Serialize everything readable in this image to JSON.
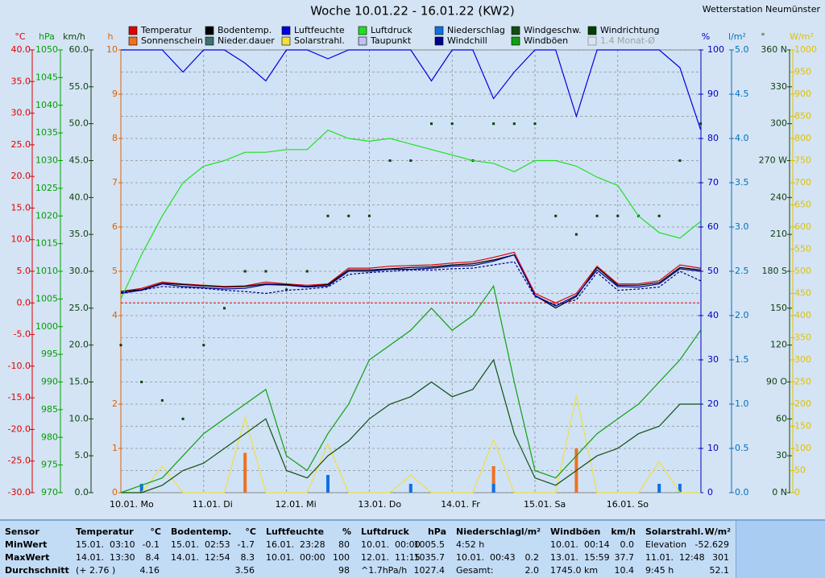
{
  "chart_data": {
    "type": "line",
    "title": "Woche 10.01.22 - 16.01.22 (KW2)",
    "station": "Wetterstation Neumünster",
    "legend_extra": "1.4 Monat-Ø",
    "xticks": [
      "10.01. Mo",
      "11.01. Di",
      "12.01. Mi",
      "13.01. Do",
      "14.01. Fr",
      "15.01. Sa",
      "16.01. So"
    ],
    "grid": true,
    "grid_axis": "W/m²",
    "axes": [
      {
        "label": "°C",
        "side": "left",
        "color": "#e00000",
        "lim": [
          -30,
          40
        ],
        "ticks": [
          {
            "value": -30,
            "label": "-30.0"
          },
          {
            "value": -25,
            "label": "-25.0"
          },
          {
            "value": -20,
            "label": "-20.0"
          },
          {
            "value": -15,
            "label": "-15.0"
          },
          {
            "value": -10,
            "label": "-10.0"
          },
          {
            "value": -5,
            "label": "-5.0"
          },
          {
            "value": 0,
            "label": "0.0"
          },
          {
            "value": 5,
            "label": "5.0"
          },
          {
            "value": 10,
            "label": "10.0"
          },
          {
            "value": 15,
            "label": "15.0"
          },
          {
            "value": 20,
            "label": "20.0"
          },
          {
            "value": 25,
            "label": "25.0"
          },
          {
            "value": 30,
            "label": "30.0"
          },
          {
            "value": 35,
            "label": "35.0"
          },
          {
            "value": 40,
            "label": "40.0"
          }
        ]
      },
      {
        "label": "hPa",
        "side": "left",
        "color": "#00a000",
        "lim": [
          970,
          1050
        ],
        "ticks": [
          970,
          975,
          980,
          985,
          990,
          995,
          1000,
          1005,
          1010,
          1015,
          1020,
          1025,
          1030,
          1035,
          1040,
          1045,
          1050
        ]
      },
      {
        "label": "km/h",
        "side": "left",
        "color": "#104010",
        "lim": [
          0,
          60
        ],
        "ticks": [
          {
            "value": 0,
            "label": "0.0"
          },
          {
            "value": 5,
            "label": "5.0"
          },
          {
            "value": 10,
            "label": "10.0"
          },
          {
            "value": 15,
            "label": "15.0"
          },
          {
            "value": 20,
            "label": "20.0"
          },
          {
            "value": 25,
            "label": "25.0"
          },
          {
            "value": 30,
            "label": "30.0"
          },
          {
            "value": 35,
            "label": "35.0"
          },
          {
            "value": 40,
            "label": "40.0"
          },
          {
            "value": 45,
            "label": "45.0"
          },
          {
            "value": 50,
            "label": "50.0"
          },
          {
            "value": 55,
            "label": "55.0"
          },
          {
            "value": 60,
            "label": "60.0"
          }
        ]
      },
      {
        "label": "h",
        "side": "left",
        "color": "#e06000",
        "lim": [
          0,
          10
        ],
        "ticks": [
          0,
          1,
          2,
          4,
          5,
          6,
          7,
          8,
          9,
          10
        ]
      },
      {
        "label": "%",
        "side": "right",
        "color": "#0000c0",
        "lim": [
          0,
          100
        ],
        "ticks": [
          0,
          10,
          20,
          30,
          40,
          50,
          60,
          70,
          80,
          90,
          100
        ]
      },
      {
        "label": "l/m²",
        "side": "right",
        "color": "#0070c0",
        "lim": [
          0,
          5
        ],
        "ticks": [
          {
            "value": 0,
            "label": "0.0"
          },
          0.5,
          {
            "value": 1,
            "label": "1.0"
          },
          1.5,
          {
            "value": 2,
            "label": "2.0"
          },
          2.5,
          {
            "value": 3,
            "label": "3.0"
          },
          3.5,
          {
            "value": 4,
            "label": "4.0"
          },
          4.5,
          {
            "value": 5,
            "label": "5.0"
          }
        ]
      },
      {
        "label": "°",
        "side": "right",
        "color": "#104010",
        "lim": [
          0,
          360
        ],
        "ticks": [
          {
            "value": 0,
            "label": "0 N"
          },
          30,
          60,
          {
            "value": 90,
            "label": "90 O"
          },
          120,
          150,
          {
            "value": 180,
            "label": "180 S"
          },
          210,
          240,
          {
            "value": 270,
            "label": "270 W"
          },
          300,
          330,
          {
            "value": 360,
            "label": "360 N"
          }
        ]
      },
      {
        "label": "W/m²",
        "side": "right",
        "color": "#e0c000",
        "lim": [
          0,
          1000
        ],
        "ticks": [
          0,
          50,
          100,
          150,
          200,
          250,
          300,
          350,
          400,
          450,
          500,
          550,
          600,
          650,
          700,
          750,
          800,
          850,
          900,
          950,
          1000
        ]
      }
    ],
    "series": [
      {
        "name": "Temperatur",
        "color": "#e00000",
        "axis": "°C",
        "kind": "line",
        "values": [
          1.8,
          2.3,
          3.3,
          3.0,
          2.8,
          2.6,
          2.7,
          3.3,
          3.0,
          2.8,
          3.0,
          5.5,
          5.5,
          5.8,
          5.9,
          6.0,
          6.3,
          6.5,
          7.2,
          8.0,
          1.5,
          0.0,
          1.5,
          5.8,
          3.0,
          3.0,
          3.5,
          6.0,
          5.5
        ]
      },
      {
        "name": "Sonnenschein",
        "color": "#f07020",
        "axis": "h",
        "kind": "bar",
        "values": [
          0,
          0,
          0,
          0,
          0,
          0,
          0.9,
          0,
          0,
          0,
          0.3,
          0,
          0,
          0,
          0,
          0,
          0,
          0,
          0.6,
          0,
          0,
          0,
          1.0,
          0,
          0,
          0,
          0,
          0,
          0
        ]
      },
      {
        "name": "Bodentemp.",
        "color": "#000000",
        "axis": "°C",
        "kind": "line",
        "values": [
          1.8,
          2.1,
          3.1,
          2.9,
          2.7,
          2.5,
          2.6,
          3.0,
          2.9,
          2.6,
          2.9,
          5.2,
          5.2,
          5.4,
          5.6,
          5.7,
          6.0,
          6.2,
          6.8,
          7.6,
          1.2,
          -0.8,
          1.0,
          5.6,
          2.8,
          2.8,
          3.2,
          5.6,
          5.2
        ]
      },
      {
        "name": "Nieder.dauer",
        "color": "#407070"
      },
      {
        "name": "Luftfeuchte",
        "color": "#0000e0",
        "axis": "%",
        "kind": "line",
        "values": [
          100,
          100,
          100,
          95,
          100,
          100,
          97,
          93,
          100,
          100,
          98,
          100,
          100,
          100,
          100,
          93,
          100,
          100,
          89,
          95,
          100,
          100,
          85,
          100,
          100,
          100,
          100,
          96,
          82
        ]
      },
      {
        "name": "Solarstrahl.",
        "color": "#f0e040",
        "axis": "W/m²",
        "kind": "line",
        "values": [
          0,
          0,
          60,
          0,
          0,
          0,
          170,
          0,
          0,
          0,
          110,
          0,
          0,
          0,
          40,
          0,
          0,
          0,
          120,
          0,
          0,
          0,
          220,
          0,
          0,
          0,
          70,
          0,
          0
        ]
      },
      {
        "name": "Luftdruck",
        "color": "#20e020",
        "axis": "hPa",
        "kind": "line",
        "values": [
          1005,
          1013,
          1020,
          1026,
          1029,
          1030,
          1031.5,
          1031.5,
          1032,
          1032,
          1035.5,
          1034,
          1033.5,
          1034,
          1033,
          1032,
          1031,
          1030,
          1029.5,
          1028,
          1030,
          1030,
          1029,
          1027,
          1025.5,
          1020,
          1017,
          1016,
          1019
        ]
      },
      {
        "name": "Taupunkt",
        "color": "#c0c0f0",
        "line_color": "#000080",
        "dash": true,
        "axis": "°C",
        "kind": "line",
        "values": [
          1.6,
          2.0,
          2.6,
          2.4,
          2.3,
          2.0,
          1.8,
          1.5,
          2.0,
          2.2,
          2.5,
          4.5,
          4.8,
          5.0,
          5.2,
          5.2,
          5.4,
          5.5,
          6.0,
          6.5,
          1.0,
          -0.3,
          0.5,
          4.8,
          2.0,
          2.2,
          2.5,
          5.0,
          3.5
        ]
      },
      {
        "name": "Niederschlag",
        "color": "#1070e0",
        "axis": "l/m²",
        "kind": "bar",
        "values": [
          0,
          0.1,
          0,
          0,
          0,
          0,
          0,
          0,
          0,
          0,
          0.2,
          0,
          0,
          0,
          0.1,
          0,
          0,
          0,
          0.1,
          0,
          0,
          0,
          0,
          0,
          0,
          0,
          0.1,
          0.1,
          0
        ]
      },
      {
        "name": "Windchill",
        "color": "#000090",
        "axis": "°C",
        "kind": "line",
        "values": [
          1.5,
          2.0,
          3.0,
          2.6,
          2.4,
          2.2,
          2.3,
          2.9,
          2.8,
          2.5,
          2.7,
          5.0,
          5.0,
          5.3,
          5.3,
          5.5,
          5.8,
          5.9,
          6.6,
          7.6,
          1.2,
          -0.5,
          1.2,
          5.2,
          2.6,
          2.5,
          3.0,
          5.4,
          5.0
        ]
      },
      {
        "name": "Windgeschw.",
        "color": "#105010",
        "axis": "km/h",
        "kind": "line",
        "values": [
          0,
          0,
          1,
          3,
          4,
          6,
          8,
          10,
          3,
          2,
          5,
          7,
          10,
          12,
          13,
          15,
          13,
          14,
          18,
          8,
          2,
          1,
          3,
          5,
          6,
          8,
          9,
          12,
          12
        ]
      },
      {
        "name": "Windböen",
        "color": "#10a010",
        "axis": "km/h",
        "kind": "line",
        "values": [
          0,
          1,
          2,
          5,
          8,
          10,
          12,
          14,
          5,
          3,
          8,
          12,
          18,
          20,
          22,
          25,
          22,
          24,
          28,
          15,
          3,
          2,
          5,
          8,
          10,
          12,
          15,
          18,
          22
        ]
      },
      {
        "name": "Windrichtung",
        "color": "#004000",
        "axis": "°",
        "kind": "dots",
        "values": [
          120,
          90,
          75,
          60,
          120,
          150,
          180,
          180,
          165,
          180,
          225,
          225,
          225,
          270,
          270,
          300,
          300,
          270,
          300,
          300,
          300,
          225,
          210,
          225,
          225,
          225,
          225,
          270,
          300
        ]
      }
    ]
  },
  "table": {
    "columns": [
      {
        "title": "Sensor"
      },
      {
        "title": "Temperatur",
        "unit": "°C"
      },
      {
        "title": "Bodentemp.",
        "unit": "°C"
      },
      {
        "title": "Luftfeuchte",
        "unit": "%"
      },
      {
        "title": "Luftdruck",
        "unit": "hPa"
      },
      {
        "title": "Niederschlag",
        "unit": "l/m²"
      },
      {
        "title": "Windböen",
        "unit": "km/h"
      },
      {
        "title": "Solarstrahl.",
        "unit": "W/m²"
      }
    ],
    "rows": [
      {
        "label": "MinWert",
        "cells": [
          {
            "note": "15.01.  03:10",
            "value": "-0.1"
          },
          {
            "note": "15.01.  02:53",
            "value": "-1.7"
          },
          {
            "note": "16.01.  23:28",
            "value": "80"
          },
          {
            "note": "10.01.  00:00",
            "value": "1005.5"
          },
          {
            "note": "4:52 h"
          },
          {
            "note": "10.01.  00:14",
            "value": "0.0"
          },
          {
            "note": "Elevation",
            "value": "-52.629"
          }
        ]
      },
      {
        "label": "MaxWert",
        "cells": [
          {
            "note": "14.01.  13:30",
            "value": "8.4"
          },
          {
            "note": "14.01.  12:54",
            "value": "8.3"
          },
          {
            "note": "10.01.  00:00",
            "value": "100"
          },
          {
            "note": "12.01.  11:15",
            "value": "1035.7"
          },
          {
            "note": "10.01.  00:43",
            "value": "0.2"
          },
          {
            "note": "13.01.  15:59",
            "value": "37.7"
          },
          {
            "note": "11.01.  12:48",
            "value": "301"
          }
        ]
      },
      {
        "label": "Durchschnitt",
        "cells": [
          {
            "note": "(+ 2.76 )",
            "value": "4.16"
          },
          {
            "value": "3.56"
          },
          {
            "value": "98"
          },
          {
            "note": "^1.7hPa/h",
            "value": "1027.4"
          },
          {
            "note": "Gesamt:",
            "value": "2.0"
          },
          {
            "note": "1745.0 km",
            "value": "10.4"
          },
          {
            "note": "9:45 h",
            "value": "52.1"
          }
        ]
      }
    ]
  }
}
